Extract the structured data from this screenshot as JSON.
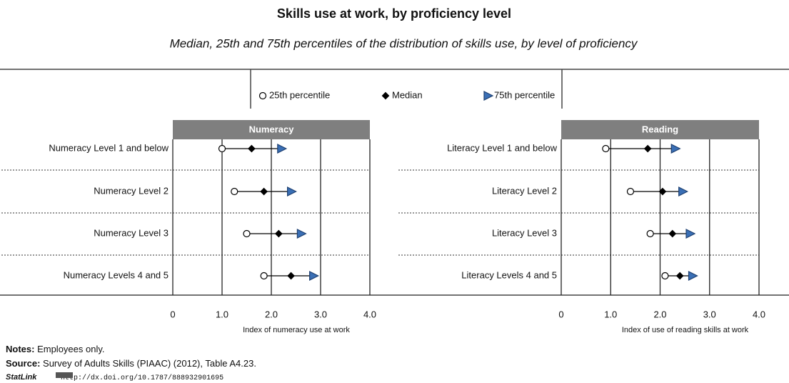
{
  "header": {
    "title": "Skills use at work, by proficiency level",
    "subtitle": "Median, 25th and 75th percentiles of the distribution of skills use, by level of proficiency"
  },
  "legend": [
    {
      "name": "25th percentile",
      "color": "#ffffff",
      "marker": "circle"
    },
    {
      "name": "Median",
      "color": "#000000",
      "marker": "diamond"
    },
    {
      "name": "75th percentile",
      "color": "#3a6fb5",
      "marker": "triangle"
    }
  ],
  "chart_data": [
    {
      "type": "dot",
      "title": "Numeracy",
      "x_label": "Index of numeracy use at work",
      "categories": [
        "Numeracy Level 1 and below",
        "Numeracy Level 2",
        "Numeracy Level 3",
        "Numeracy Levels 4 and 5"
      ],
      "series": [
        {
          "values": [
            1.0,
            1.25,
            1.5,
            1.85
          ]
        },
        {
          "values": [
            1.6,
            1.85,
            2.15,
            2.4
          ]
        },
        {
          "values": [
            2.2,
            2.4,
            2.6,
            2.85
          ]
        }
      ],
      "xlim": [
        0,
        4
      ],
      "xticks": [
        0,
        {
          "value": 1,
          "label": "1.0"
        },
        {
          "value": 2,
          "label": "2.0"
        },
        {
          "value": 3,
          "label": "3.0"
        },
        {
          "value": 4,
          "label": "4.0"
        }
      ],
      "grid": true
    },
    {
      "type": "dot",
      "title": "Reading",
      "x_label": "Index of use of reading skills at work",
      "categories": [
        "Literacy Level 1 and below",
        "Literacy Level 2",
        "Literacy Level 3",
        "Literacy Levels 4 and 5"
      ],
      "series": [
        {
          "values": [
            0.9,
            1.4,
            1.8,
            2.1
          ]
        },
        {
          "values": [
            1.75,
            2.05,
            2.25,
            2.4
          ]
        },
        {
          "values": [
            2.3,
            2.45,
            2.6,
            2.65
          ]
        }
      ],
      "xlim": [
        0,
        4
      ],
      "xticks": [
        0,
        {
          "value": 1,
          "label": "1.0"
        },
        {
          "value": 2,
          "label": "2.0"
        },
        {
          "value": 3,
          "label": "3.0"
        },
        {
          "value": 4,
          "label": "4.0"
        }
      ],
      "grid": true
    }
  ],
  "notes": {
    "notes_label": "Notes:",
    "notes_text": "Employees only.",
    "source_label": "Source:",
    "source_text": "Survey of Adults Skills (PIAAC) (2012), Table A4.23.",
    "statlink_label": "StatLink",
    "statlink_url": "http://dx.doi.org/10.1787/888932901695"
  }
}
